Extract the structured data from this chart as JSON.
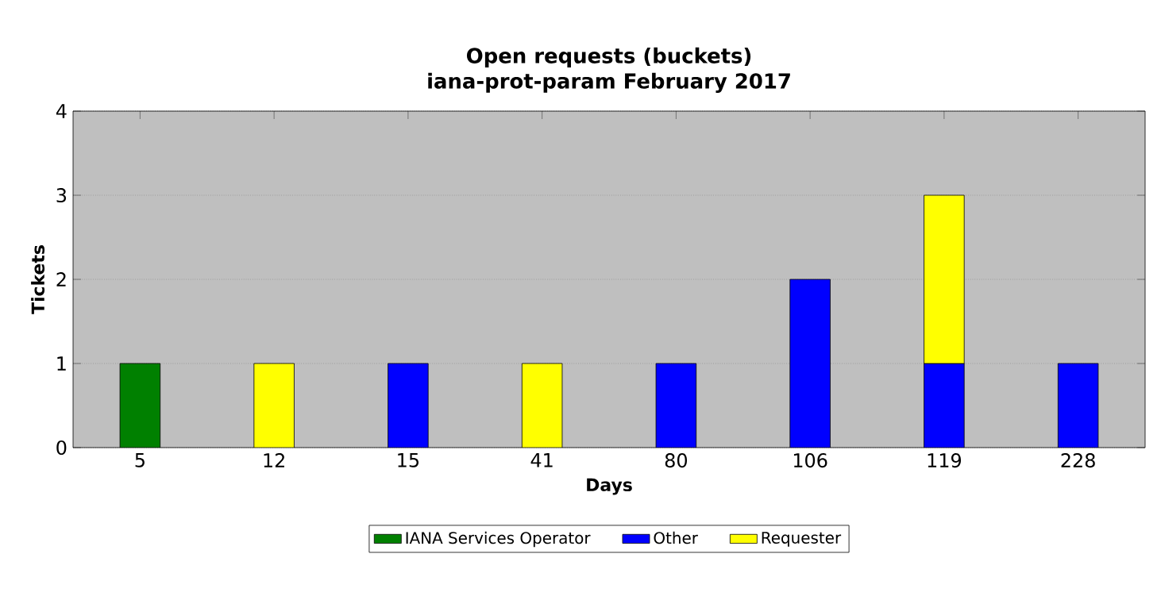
{
  "chart_data": {
    "type": "bar",
    "title": "Open requests (buckets)",
    "subtitle": "iana-prot-param February 2017",
    "xlabel": "Days",
    "ylabel": "Tickets",
    "categories": [
      "5",
      "12",
      "15",
      "41",
      "80",
      "106",
      "119",
      "228"
    ],
    "stacked": true,
    "series": [
      {
        "name": "IANA Services Operator",
        "color": "#008000",
        "values": [
          1,
          0,
          0,
          0,
          0,
          0,
          0,
          0
        ]
      },
      {
        "name": "Other",
        "color": "#0000ff",
        "values": [
          0,
          0,
          1,
          0,
          1,
          2,
          1,
          1
        ]
      },
      {
        "name": "Requester",
        "color": "#ffff00",
        "values": [
          0,
          1,
          0,
          1,
          0,
          0,
          2,
          0
        ]
      }
    ],
    "ylim": [
      0,
      4
    ],
    "yticks": [
      0,
      1,
      2,
      3,
      4
    ],
    "grid": "y",
    "legend": "bottom"
  }
}
